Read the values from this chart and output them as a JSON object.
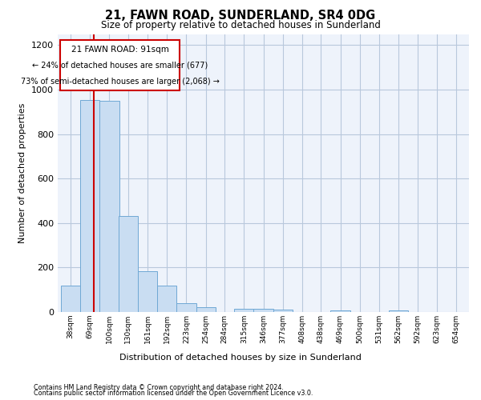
{
  "title": "21, FAWN ROAD, SUNDERLAND, SR4 0DG",
  "subtitle": "Size of property relative to detached houses in Sunderland",
  "xlabel": "Distribution of detached houses by size in Sunderland",
  "ylabel": "Number of detached properties",
  "footnote1": "Contains HM Land Registry data © Crown copyright and database right 2024.",
  "footnote2": "Contains public sector information licensed under the Open Government Licence v3.0.",
  "annotation_title": "21 FAWN ROAD: 91sqm",
  "annotation_line1": "← 24% of detached houses are smaller (677)",
  "annotation_line2": "73% of semi-detached houses are larger (2,068) →",
  "bar_color": "#c9ddf2",
  "bar_edge_color": "#6fa8d4",
  "vline_color": "#cc0000",
  "vline_x": 91,
  "categories": [
    "38sqm",
    "69sqm",
    "100sqm",
    "130sqm",
    "161sqm",
    "192sqm",
    "223sqm",
    "254sqm",
    "284sqm",
    "315sqm",
    "346sqm",
    "377sqm",
    "408sqm",
    "438sqm",
    "469sqm",
    "500sqm",
    "531sqm",
    "562sqm",
    "592sqm",
    "623sqm",
    "654sqm"
  ],
  "bin_edges": [
    38,
    69,
    100,
    130,
    161,
    192,
    223,
    254,
    284,
    315,
    346,
    377,
    408,
    438,
    469,
    500,
    531,
    562,
    592,
    623,
    654
  ],
  "bin_width": 31,
  "values": [
    120,
    955,
    950,
    430,
    183,
    120,
    40,
    20,
    0,
    15,
    15,
    10,
    0,
    0,
    8,
    0,
    0,
    8,
    0,
    0,
    0
  ],
  "ylim": [
    0,
    1250
  ],
  "yticks": [
    0,
    200,
    400,
    600,
    800,
    1000,
    1200
  ],
  "background_color": "#eef3fb",
  "grid_color": "#b8c8dc"
}
